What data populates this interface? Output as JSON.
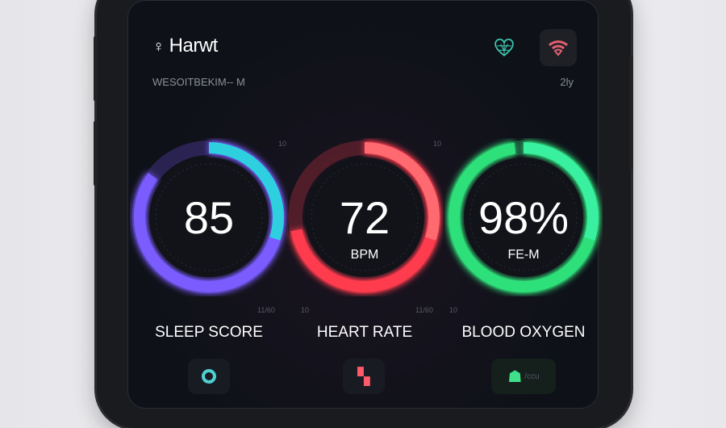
{
  "header": {
    "title": "Harwt",
    "subtitle": "WESOITBEKIM-- M",
    "right_meta": "2ly"
  },
  "icons": {
    "user": "user-icon",
    "globe_heart": "heart-globe-icon",
    "wifi": "wifi-icon"
  },
  "gauges": [
    {
      "label": "SLEEP SCORE",
      "value": "85",
      "unit": "",
      "level": 0.85,
      "color": "#7a5cff",
      "accent": "#2ed0e0"
    },
    {
      "label": "HEART RATE",
      "value": "72",
      "unit": "BPM",
      "level": 0.72,
      "color": "#ff3b4e",
      "accent": "#ff6a70"
    },
    {
      "label": "BLOOD OXYGEN",
      "value": "98%",
      "unit": "FE-M",
      "level": 0.98,
      "color": "#2ee07a",
      "accent": "#38f0a0"
    }
  ],
  "tick_labels": [
    "10",
    "10",
    "11/60",
    "10",
    "11/60",
    "10"
  ],
  "bottom": [
    {
      "icon": "ring-icon",
      "color": "#4fd1d1"
    },
    {
      "icon": "heart-chart-icon",
      "color": "#ff5a6a"
    },
    {
      "icon": "person-icon",
      "color": "#3ee08a",
      "label": "/ccu"
    }
  ]
}
